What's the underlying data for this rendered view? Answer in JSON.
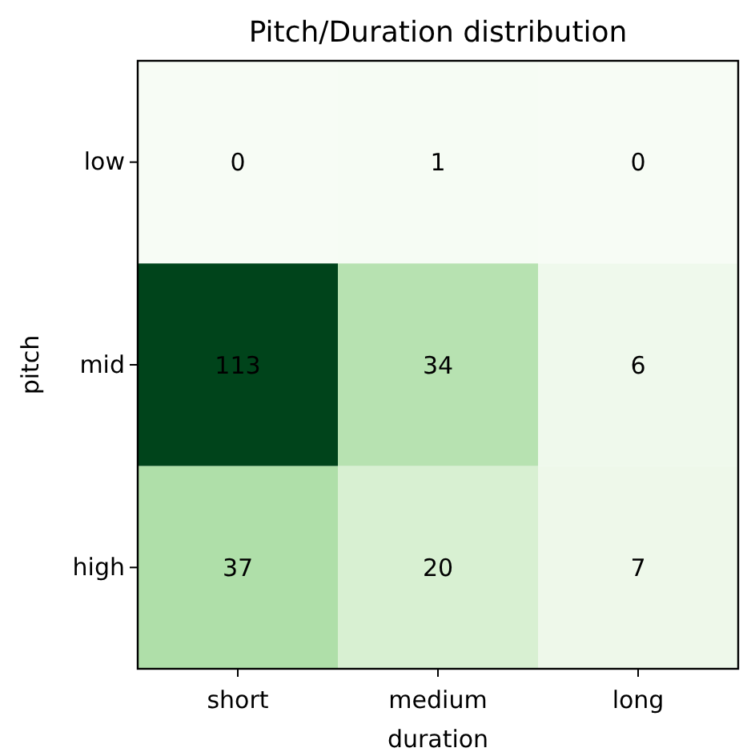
{
  "chart_data": {
    "type": "heatmap",
    "title": "Pitch/Duration distribution",
    "xlabel": "duration",
    "ylabel": "pitch",
    "categories": [
      "short",
      "medium",
      "long"
    ],
    "y_categories": [
      "low",
      "mid",
      "high"
    ],
    "cells": [
      [
        0,
        1,
        0
      ],
      [
        113,
        34,
        6
      ],
      [
        37,
        20,
        7
      ]
    ],
    "data_labels": true
  }
}
